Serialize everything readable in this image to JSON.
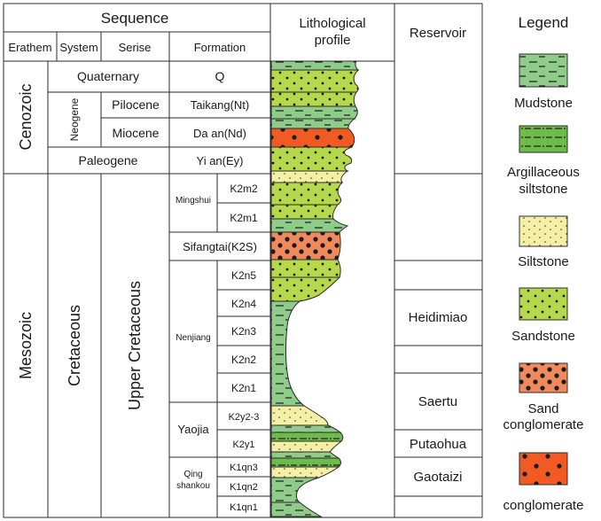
{
  "header": {
    "sequence": "Sequence",
    "erathem": "Erathem",
    "system": "System",
    "serise": "Serise",
    "formation": "Formation",
    "lithological_profile_line1": "Lithological",
    "lithological_profile_line2": "profile",
    "reservoir": "Reservoir"
  },
  "erathems": [
    "Cenozoic",
    "Mesozoic"
  ],
  "systems": [
    "Neogene",
    "Cretaceous"
  ],
  "cenozoic_units": {
    "quaternary": "Quaternary",
    "paleogene": "Paleogene",
    "pilocene": "Pilocene",
    "miocene": "Miocene"
  },
  "serise_upper": "Upper Cretaceous",
  "formations": {
    "q": "Q",
    "taikang": "Taikang(Nt)",
    "daan": "Da an(Nd)",
    "yian": "Yi an(Ey)",
    "mingshui": "Mingshui",
    "k2m2": "K2m2",
    "k2m1": "K2m1",
    "sifangtai": "Sifangtai(K2S)",
    "nenjiang": "Nenjiang",
    "k2n5": "K2n5",
    "k2n4": "K2n4",
    "k2n3": "K2n3",
    "k2n2": "K2n2",
    "k2n1": "K2n1",
    "yaojia": "Yaojia",
    "k2y23": "K2y2-3",
    "k2y1": "K2y1",
    "qing1": "Qing",
    "qing2": "shankou",
    "k1qn3": "K1qn3",
    "k1qn2": "K1qn2",
    "k1qn1": "K1qn1"
  },
  "reservoirs": [
    "Heidimiao",
    "Saertu",
    "Putaohua",
    "Gaotaizi"
  ],
  "legend": {
    "title": "Legend",
    "items": [
      {
        "label": "Mudstone",
        "pattern": "mudstone"
      },
      {
        "label": "Argillaceous siltstone",
        "line1": "Argillaceous",
        "line2": "siltstone",
        "pattern": "argillaceous"
      },
      {
        "label": "Siltstone",
        "pattern": "siltstone"
      },
      {
        "label": "Sandstone",
        "pattern": "sandstone"
      },
      {
        "label": "Sand conglomerate",
        "line1": "Sand",
        "line2": "conglomerate",
        "pattern": "sandcong"
      },
      {
        "label": "conglomerate",
        "pattern": "cong"
      }
    ]
  },
  "colors": {
    "mudstone": "#8fcc8a",
    "sandstone": "#b5d94a",
    "siltstone": "#f4efa4",
    "sand_conglomerate": "#f08a5c",
    "conglomerate": "#f25a24",
    "argillaceous": "#6dbb4a",
    "line": "#2b2b2b"
  }
}
